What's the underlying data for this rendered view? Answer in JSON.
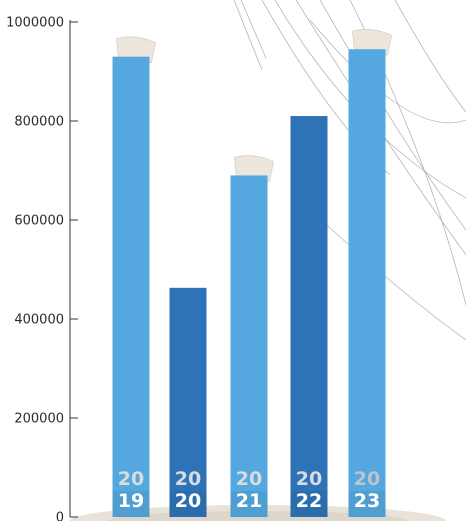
{
  "chart_data": {
    "type": "bar",
    "categories": [
      "2019",
      "2020",
      "2021",
      "2022",
      "2023"
    ],
    "category_label_parts": [
      [
        "20",
        "19"
      ],
      [
        "20",
        "20"
      ],
      [
        "20",
        "21"
      ],
      [
        "20",
        "22"
      ],
      [
        "20",
        "23"
      ]
    ],
    "values": [
      930000,
      463000,
      690000,
      810000,
      945000
    ],
    "ylim": [
      0,
      1000000
    ],
    "yticks": [
      0,
      200000,
      400000,
      600000,
      800000,
      1000000
    ],
    "ytick_labels": [
      "0",
      "200000",
      "400000",
      "600000",
      "800000",
      "1000000"
    ],
    "grid": false,
    "bar_colors": [
      "#55a8df",
      "#2e73b8",
      "#55a8df",
      "#2e73b8",
      "#55a8df"
    ],
    "paper_tab": [
      true,
      false,
      true,
      false,
      true
    ]
  }
}
